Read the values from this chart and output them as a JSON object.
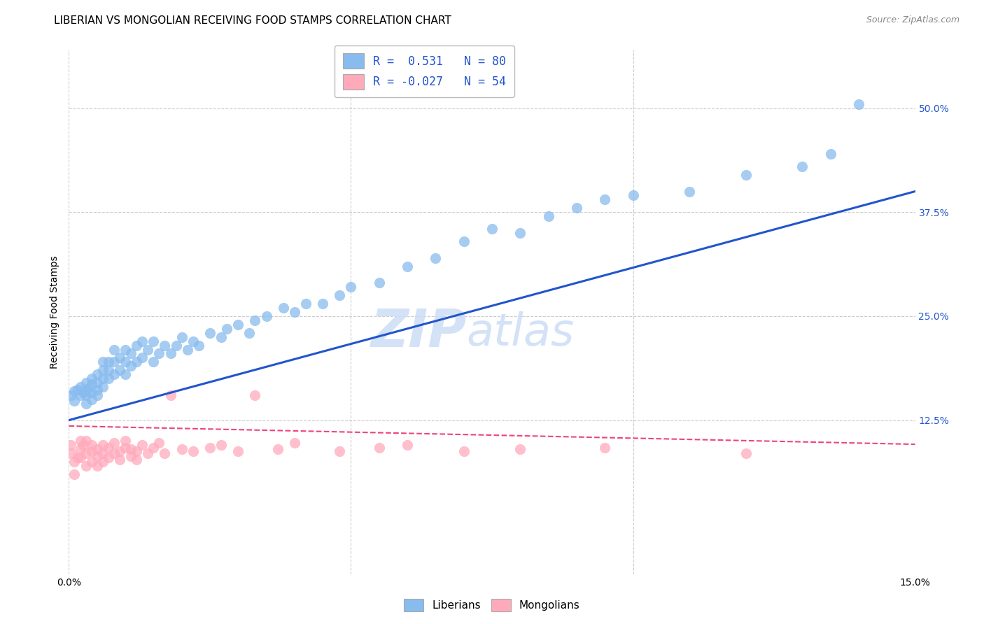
{
  "title": "LIBERIAN VS MONGOLIAN RECEIVING FOOD STAMPS CORRELATION CHART",
  "source": "Source: ZipAtlas.com",
  "ylabel": "Receiving Food Stamps",
  "ytick_labels": [
    "12.5%",
    "25.0%",
    "37.5%",
    "50.0%"
  ],
  "ytick_values": [
    0.125,
    0.25,
    0.375,
    0.5
  ],
  "xlim": [
    0.0,
    0.15
  ],
  "ylim": [
    -0.06,
    0.57
  ],
  "liberian_color": "#88bbee",
  "mongolian_color": "#ffaabb",
  "liberian_line_color": "#2255cc",
  "mongolian_line_color": "#ee4477",
  "watermark_zip": "ZIP",
  "watermark_atlas": "atlas",
  "legend_R_liberian": "R =  0.531",
  "legend_N_liberian": "N = 80",
  "legend_R_mongolian": "R = -0.027",
  "legend_N_mongolian": "N = 54",
  "liberian_R": 0.531,
  "liberian_N": 80,
  "mongolian_R": -0.027,
  "mongolian_N": 54,
  "liberian_x": [
    0.0005,
    0.001,
    0.001,
    0.0015,
    0.002,
    0.002,
    0.0025,
    0.003,
    0.003,
    0.003,
    0.003,
    0.0035,
    0.004,
    0.004,
    0.004,
    0.004,
    0.005,
    0.005,
    0.005,
    0.005,
    0.006,
    0.006,
    0.006,
    0.006,
    0.007,
    0.007,
    0.007,
    0.008,
    0.008,
    0.008,
    0.009,
    0.009,
    0.01,
    0.01,
    0.01,
    0.011,
    0.011,
    0.012,
    0.012,
    0.013,
    0.013,
    0.014,
    0.015,
    0.015,
    0.016,
    0.017,
    0.018,
    0.019,
    0.02,
    0.021,
    0.022,
    0.023,
    0.025,
    0.027,
    0.028,
    0.03,
    0.032,
    0.033,
    0.035,
    0.038,
    0.04,
    0.042,
    0.045,
    0.048,
    0.05,
    0.055,
    0.06,
    0.065,
    0.07,
    0.075,
    0.08,
    0.085,
    0.09,
    0.095,
    0.1,
    0.11,
    0.12,
    0.13,
    0.135,
    0.14
  ],
  "liberian_y": [
    0.155,
    0.16,
    0.148,
    0.162,
    0.155,
    0.165,
    0.158,
    0.145,
    0.155,
    0.16,
    0.17,
    0.163,
    0.15,
    0.158,
    0.168,
    0.175,
    0.155,
    0.162,
    0.17,
    0.18,
    0.165,
    0.175,
    0.185,
    0.195,
    0.175,
    0.185,
    0.195,
    0.18,
    0.195,
    0.21,
    0.185,
    0.2,
    0.18,
    0.195,
    0.21,
    0.19,
    0.205,
    0.195,
    0.215,
    0.2,
    0.22,
    0.21,
    0.195,
    0.22,
    0.205,
    0.215,
    0.205,
    0.215,
    0.225,
    0.21,
    0.22,
    0.215,
    0.23,
    0.225,
    0.235,
    0.24,
    0.23,
    0.245,
    0.25,
    0.26,
    0.255,
    0.265,
    0.265,
    0.275,
    0.285,
    0.29,
    0.31,
    0.32,
    0.34,
    0.355,
    0.35,
    0.37,
    0.38,
    0.39,
    0.395,
    0.4,
    0.42,
    0.43,
    0.445,
    0.505
  ],
  "mongolian_x": [
    0.0003,
    0.0005,
    0.001,
    0.001,
    0.0015,
    0.002,
    0.002,
    0.002,
    0.0025,
    0.003,
    0.003,
    0.003,
    0.004,
    0.004,
    0.004,
    0.005,
    0.005,
    0.005,
    0.006,
    0.006,
    0.006,
    0.007,
    0.007,
    0.008,
    0.008,
    0.009,
    0.009,
    0.01,
    0.01,
    0.011,
    0.011,
    0.012,
    0.012,
    0.013,
    0.014,
    0.015,
    0.016,
    0.017,
    0.018,
    0.02,
    0.022,
    0.025,
    0.027,
    0.03,
    0.033,
    0.037,
    0.04,
    0.048,
    0.055,
    0.06,
    0.07,
    0.08,
    0.095,
    0.12
  ],
  "mongolian_y": [
    0.095,
    0.085,
    0.075,
    0.06,
    0.08,
    0.1,
    0.09,
    0.08,
    0.095,
    0.07,
    0.085,
    0.1,
    0.075,
    0.088,
    0.095,
    0.07,
    0.082,
    0.09,
    0.075,
    0.085,
    0.095,
    0.08,
    0.092,
    0.085,
    0.098,
    0.078,
    0.088,
    0.092,
    0.1,
    0.082,
    0.09,
    0.078,
    0.088,
    0.095,
    0.085,
    0.092,
    0.098,
    0.085,
    0.155,
    0.09,
    0.088,
    0.092,
    0.095,
    0.088,
    0.155,
    0.09,
    0.098,
    0.088,
    0.092,
    0.095,
    0.088,
    0.09,
    0.092,
    0.085
  ],
  "grid_color": "#cccccc",
  "background_color": "#ffffff",
  "title_fontsize": 11,
  "label_fontsize": 10,
  "tick_fontsize": 10
}
